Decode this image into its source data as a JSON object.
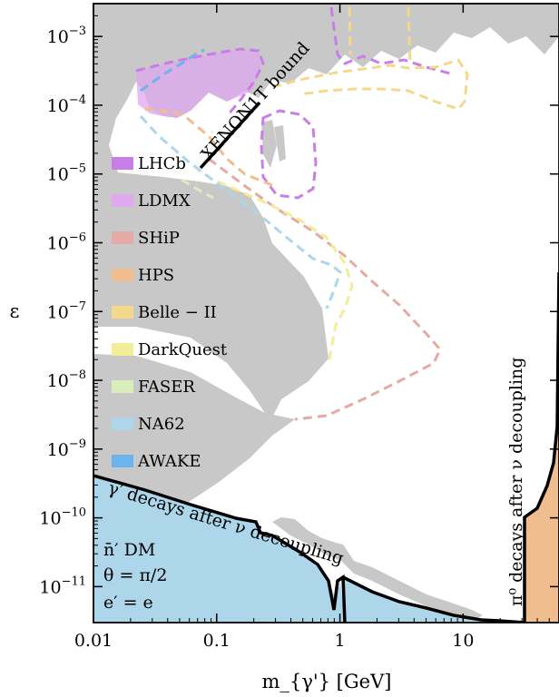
{
  "chart_data": {
    "type": "area",
    "xlabel": "m_{γ'} [GeV]",
    "ylabel": "ε",
    "xscale": "log",
    "yscale": "log",
    "xlim": [
      0.01,
      60
    ],
    "ylim": [
      3e-12,
      0.003
    ],
    "x_ticks": [
      {
        "value": 0.01,
        "label": "0.01"
      },
      {
        "value": 0.1,
        "label": "0.1"
      },
      {
        "value": 1,
        "label": "1"
      },
      {
        "value": 10,
        "label": "10"
      }
    ],
    "y_ticks": [
      {
        "value": 0.001,
        "base": "10",
        "exp": "−3"
      },
      {
        "value": 0.0001,
        "base": "10",
        "exp": "−4"
      },
      {
        "value": 1e-05,
        "base": "10",
        "exp": "−5"
      },
      {
        "value": 1e-06,
        "base": "10",
        "exp": "−6"
      },
      {
        "value": 1e-07,
        "base": "10",
        "exp": "−7"
      },
      {
        "value": 1e-08,
        "base": "10",
        "exp": "−8"
      },
      {
        "value": 1e-09,
        "base": "10",
        "exp": "−9"
      },
      {
        "value": 1e-10,
        "base": "10",
        "exp": "−10"
      },
      {
        "value": 1e-11,
        "base": "10",
        "exp": "−11"
      }
    ],
    "legend": {
      "placement": "left",
      "entries": [
        {
          "name": "LHCb",
          "color": "#c77ee8"
        },
        {
          "name": "LDMX",
          "color": "#dfa8ef"
        },
        {
          "name": "SHiP",
          "color": "#e6aaa6"
        },
        {
          "name": "HPS",
          "color": "#f0bd8e"
        },
        {
          "name": "Belle − II",
          "color": "#f5d98a"
        },
        {
          "name": "DarkQuest",
          "color": "#f2ee98"
        },
        {
          "name": "FASER",
          "color": "#d9eebb"
        },
        {
          "name": "NA62",
          "color": "#aed6ea"
        },
        {
          "name": "AWAKE",
          "color": "#6cb4ee"
        }
      ]
    },
    "annotations": {
      "xenon": "XENON1T bound",
      "gamma_decay": "γ′ decays after ν decoupling",
      "pi_decay": "π⁰ decays after ν decoupling",
      "dm_line1": "n̄′ DM",
      "dm_line2": "θ = π/2",
      "dm_line3": "e′ = e"
    },
    "existing_constraints": {
      "color": "#c8c8c8",
      "lower_boundary": [
        [
          0.01,
          0.0001
        ],
        [
          0.02,
          3e-05
        ],
        [
          0.05,
          1.2e-05
        ],
        [
          0.1,
          6e-06
        ],
        [
          0.2,
          3.2e-06
        ],
        [
          0.35,
          1.5e-06
        ],
        [
          0.5,
          5e-07
        ],
        [
          0.7,
          2e-07
        ],
        [
          0.78,
          7e-08
        ]
      ],
      "lower_left_boundary": [
        [
          0.01,
          1e-09
        ],
        [
          0.02,
          4e-10
        ],
        [
          0.05,
          2.4e-10
        ],
        [
          0.1,
          1.6e-10
        ],
        [
          0.2,
          1.2e-09
        ],
        [
          0.3,
          3e-09
        ]
      ],
      "bottom_strip": [
        [
          0.8,
          7e-11
        ],
        [
          1,
          5e-11
        ],
        [
          2,
          2.5e-11
        ],
        [
          5,
          1.2e-11
        ],
        [
          10,
          6e-12
        ],
        [
          15,
          4.5e-12
        ]
      ]
    },
    "series": [
      {
        "name": "γ′ decays after ν decoupling",
        "points": [
          [
            0.01,
            4e-10
          ],
          [
            0.02,
            2.6e-10
          ],
          [
            0.05,
            1.5e-10
          ],
          [
            0.1,
            9e-11
          ],
          [
            0.2,
            5.2e-11
          ],
          [
            0.3,
            3.7e-11
          ],
          [
            0.5,
            2.2e-11
          ],
          [
            0.75,
            1.1e-11
          ],
          [
            0.8,
            7e-12
          ],
          [
            0.9,
            1.5e-11
          ],
          [
            1,
            3e-12
          ],
          [
            2,
            1.1e-11
          ],
          [
            5,
            6e-12
          ],
          [
            10,
            4.5e-12
          ],
          [
            20,
            3.5e-12
          ],
          [
            30,
            3e-12
          ]
        ]
      },
      {
        "name": "π⁰ decays after ν decoupling",
        "points": [
          [
            30,
            3e-12
          ],
          [
            30,
            1.5e-10
          ],
          [
            40,
            3e-10
          ],
          [
            50,
            8e-10
          ],
          [
            55,
            2e-09
          ],
          [
            60,
            3e-08
          ],
          [
            60,
            0.003
          ]
        ]
      }
    ],
    "xenon_line": [
      [
        0.07,
        1e-05
      ],
      [
        0.2,
        0.00011
      ]
    ],
    "projections": [
      {
        "name": "LHCb",
        "color": "#c77ee8",
        "points": [
          [
            0.21,
            3e-05
          ],
          [
            0.23,
            6e-05
          ],
          [
            0.3,
            8e-05
          ],
          [
            0.5,
            8e-05
          ],
          [
            0.55,
            3e-05
          ],
          [
            0.5,
            1e-05
          ],
          [
            0.4,
            1e-05
          ],
          [
            0.3,
            1.1e-05
          ],
          [
            0.23,
            1.3e-05
          ]
        ]
      },
      {
        "name": "LDMX",
        "color": "#dfa8ef",
        "points": [
          [
            0.02,
            0.0004
          ],
          [
            0.04,
            0.0005
          ],
          [
            0.08,
            0.0007
          ],
          [
            0.12,
            0.0005
          ],
          [
            0.14,
            0.0002
          ],
          [
            0.1,
            6e-05
          ],
          [
            0.05,
            3e-05
          ],
          [
            0.02,
            2.8e-05
          ]
        ]
      },
      {
        "name": "SHiP",
        "color": "#e6aaa6",
        "points": [
          [
            0.1,
            2e-05
          ],
          [
            0.3,
            4e-06
          ],
          [
            0.7,
            8e-07
          ],
          [
            1.3,
            2e-07
          ],
          [
            1.6,
            8e-08
          ],
          [
            1.4,
            1.5e-08
          ],
          [
            0.7,
            4e-09
          ],
          [
            0.3,
            1e-09
          ]
        ]
      },
      {
        "name": "HPS",
        "color": "#f0bd8e",
        "points": [
          [
            0.02,
            6e-05
          ],
          [
            0.05,
            0.0001
          ],
          [
            0.1,
            0.00015
          ],
          [
            0.12,
            0.0001
          ],
          [
            0.1,
            2e-05
          ],
          [
            0.05,
            2e-05
          ],
          [
            0.03,
            2.5e-05
          ]
        ]
      },
      {
        "name": "Belle − II",
        "color": "#f5d98a",
        "points": [
          [
            0.2,
            0.00015
          ],
          [
            0.6,
            0.00025
          ],
          [
            1,
            0.00025
          ],
          [
            3,
            0.0002
          ],
          [
            8,
            0.00022
          ],
          [
            10,
            0.0001
          ],
          [
            7,
            0.0001
          ],
          [
            3,
            0.0001
          ],
          [
            1,
            0.0001
          ]
        ]
      },
      {
        "name": "DarkQuest",
        "color": "#f2ee98",
        "points": [
          [
            0.2,
            6e-06
          ],
          [
            0.4,
            3e-06
          ],
          [
            0.7,
            1e-06
          ],
          [
            0.9,
            3e-07
          ],
          [
            1,
            1.5e-07
          ],
          [
            0.9,
            7e-08
          ],
          [
            0.78,
            3e-08
          ]
        ]
      },
      {
        "name": "NA62",
        "color": "#aed6ea",
        "points": [
          [
            0.02,
            3e-05
          ],
          [
            0.05,
            1e-05
          ],
          [
            0.1,
            4e-06
          ],
          [
            0.3,
            1.5e-06
          ],
          [
            0.6,
            6e-07
          ],
          [
            0.85,
            3e-07
          ],
          [
            0.9,
            1e-07
          ]
        ]
      },
      {
        "name": "AWAKE",
        "color": "#6cb4ee",
        "points": [
          [
            0.02,
            0.0004
          ],
          [
            0.03,
            0.0003
          ],
          [
            0.05,
            0.0002
          ],
          [
            0.07,
            0.00012
          ],
          [
            0.1,
            6e-05
          ]
        ]
      }
    ]
  }
}
